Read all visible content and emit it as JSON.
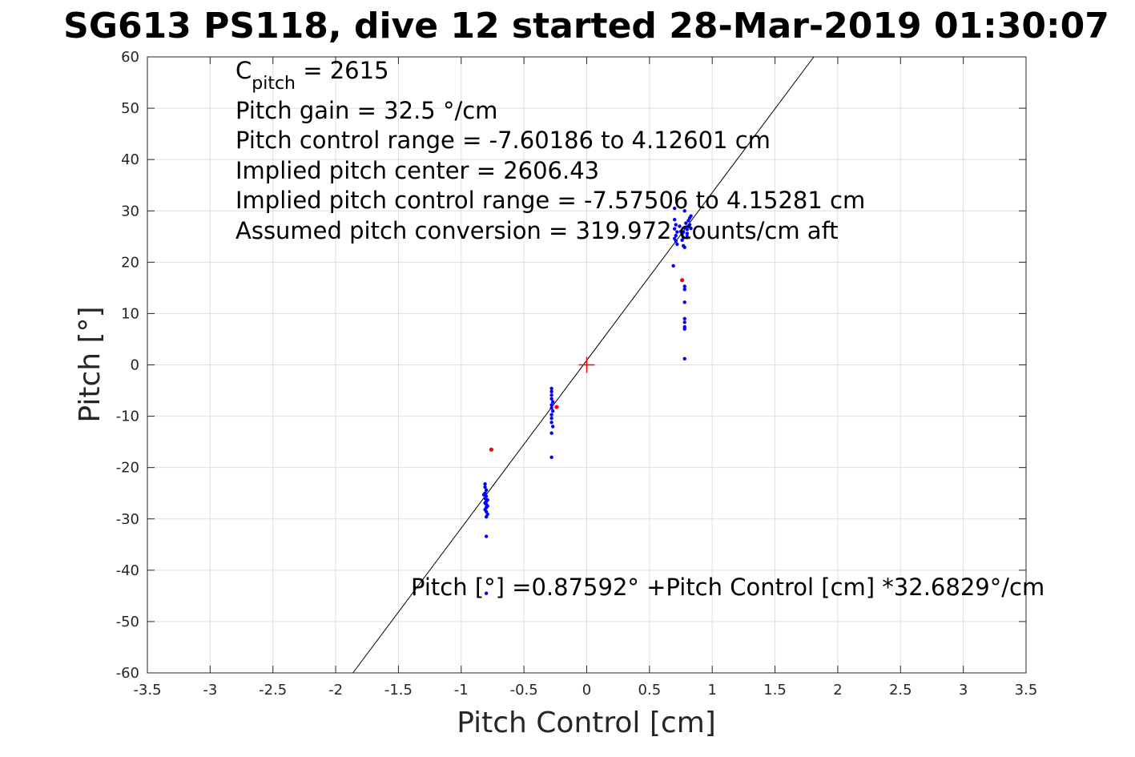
{
  "title": "SG613 PS118, dive 12 started 28-Mar-2019 01:30:07",
  "chart_data": {
    "type": "scatter",
    "xlabel": "Pitch Control [cm]",
    "ylabel": "Pitch [°]",
    "xlim": [
      -3.5,
      3.5
    ],
    "ylim": [
      -60,
      60
    ],
    "xticks": [
      -3.5,
      -3,
      -2.5,
      -2,
      -1.5,
      -1,
      -0.5,
      0,
      0.5,
      1,
      1.5,
      2,
      2.5,
      3,
      3.5
    ],
    "xtick_labels": [
      "-3.5",
      "-3",
      "-2.5",
      "-2",
      "-1.5",
      "-1",
      "-0.5",
      "0",
      "0.5",
      "1",
      "1.5",
      "2",
      "2.5",
      "3",
      "3.5"
    ],
    "yticks": [
      -60,
      -50,
      -40,
      -30,
      -20,
      -10,
      0,
      10,
      20,
      30,
      40,
      50,
      60
    ],
    "ytick_labels": [
      "-60",
      "-50",
      "-40",
      "-30",
      "-20",
      "-10",
      "0",
      "10",
      "20",
      "30",
      "40",
      "50",
      "60"
    ],
    "grid": true,
    "series": [
      {
        "color": "#0000ff",
        "points": [
          [
            -0.81,
            -23.2
          ],
          [
            -0.81,
            -23.8
          ],
          [
            -0.8,
            -24.4
          ],
          [
            -0.81,
            -25.0
          ],
          [
            -0.82,
            -25.3
          ],
          [
            -0.8,
            -25.6
          ],
          [
            -0.81,
            -26.0
          ],
          [
            -0.79,
            -26.3
          ],
          [
            -0.8,
            -26.6
          ],
          [
            -0.81,
            -26.9
          ],
          [
            -0.8,
            -27.2
          ],
          [
            -0.79,
            -27.5
          ],
          [
            -0.8,
            -27.8
          ],
          [
            -0.81,
            -28.2
          ],
          [
            -0.8,
            -28.6
          ],
          [
            -0.79,
            -29.1
          ],
          [
            -0.8,
            -29.6
          ],
          [
            -0.8,
            -33.4
          ],
          [
            -0.8,
            -44.5
          ],
          [
            -0.28,
            -4.6
          ],
          [
            -0.28,
            -5.2
          ],
          [
            -0.28,
            -5.9
          ],
          [
            -0.28,
            -6.6
          ],
          [
            -0.27,
            -7.2
          ],
          [
            -0.28,
            -7.8
          ],
          [
            -0.28,
            -8.4
          ],
          [
            -0.27,
            -9.0
          ],
          [
            -0.28,
            -9.7
          ],
          [
            -0.28,
            -10.4
          ],
          [
            -0.28,
            -11.2
          ],
          [
            -0.27,
            -12.0
          ],
          [
            -0.28,
            -13.3
          ],
          [
            -0.28,
            -18.0
          ],
          [
            0.7,
            30.5
          ],
          [
            0.7,
            28.3
          ],
          [
            0.71,
            27.3
          ],
          [
            0.7,
            26.5
          ],
          [
            0.72,
            25.9
          ],
          [
            0.71,
            25.2
          ],
          [
            0.7,
            24.6
          ],
          [
            0.71,
            24.1
          ],
          [
            0.72,
            23.5
          ],
          [
            0.69,
            19.3
          ],
          [
            0.74,
            27.0
          ],
          [
            0.75,
            26.0
          ],
          [
            0.76,
            25.4
          ],
          [
            0.77,
            24.8
          ],
          [
            0.78,
            26.7
          ],
          [
            0.77,
            25.9
          ],
          [
            0.76,
            24.3
          ],
          [
            0.77,
            23.2
          ],
          [
            0.78,
            22.9
          ],
          [
            0.78,
            30.0
          ],
          [
            0.79,
            27.6
          ],
          [
            0.8,
            26.4
          ],
          [
            0.81,
            28.1
          ],
          [
            0.8,
            25.6
          ],
          [
            0.81,
            27.0
          ],
          [
            0.82,
            28.6
          ],
          [
            0.82,
            27.3
          ],
          [
            0.83,
            29.0
          ],
          [
            0.83,
            26.6
          ],
          [
            0.8,
            25.0
          ],
          [
            0.78,
            15.3
          ],
          [
            0.78,
            14.7
          ],
          [
            0.78,
            12.2
          ],
          [
            0.78,
            9.0
          ],
          [
            0.78,
            8.3
          ],
          [
            0.78,
            7.4
          ],
          [
            0.78,
            7.0
          ],
          [
            0.78,
            1.2
          ]
        ]
      },
      {
        "color": "#ff0000",
        "points": [
          [
            -0.76,
            -16.5
          ],
          [
            -0.24,
            -8.2
          ],
          [
            0.76,
            16.5
          ]
        ]
      }
    ],
    "center_marker": {
      "x": 0,
      "y": 0,
      "color": "#ff0000",
      "symbol": "+"
    },
    "fit_line": {
      "intercept": 0.87592,
      "slope": 32.6829,
      "color": "#000000"
    },
    "annotations": {
      "c_pitch_main": "C",
      "c_pitch_sub": "pitch",
      "c_pitch_rest": " = 2615",
      "gain": "Pitch gain = 32.5 °/cm",
      "range": "Pitch control range = -7.60186 to 4.12601 cm",
      "center": "Implied pitch center = 2606.43",
      "implied_range": "Implied pitch control range = -7.57506 to 4.15281 cm",
      "conversion": "Assumed pitch conversion = 319.972 counts/cm aft",
      "equation": "Pitch [°] =0.87592° +Pitch Control [cm] *32.6829°/cm"
    }
  }
}
